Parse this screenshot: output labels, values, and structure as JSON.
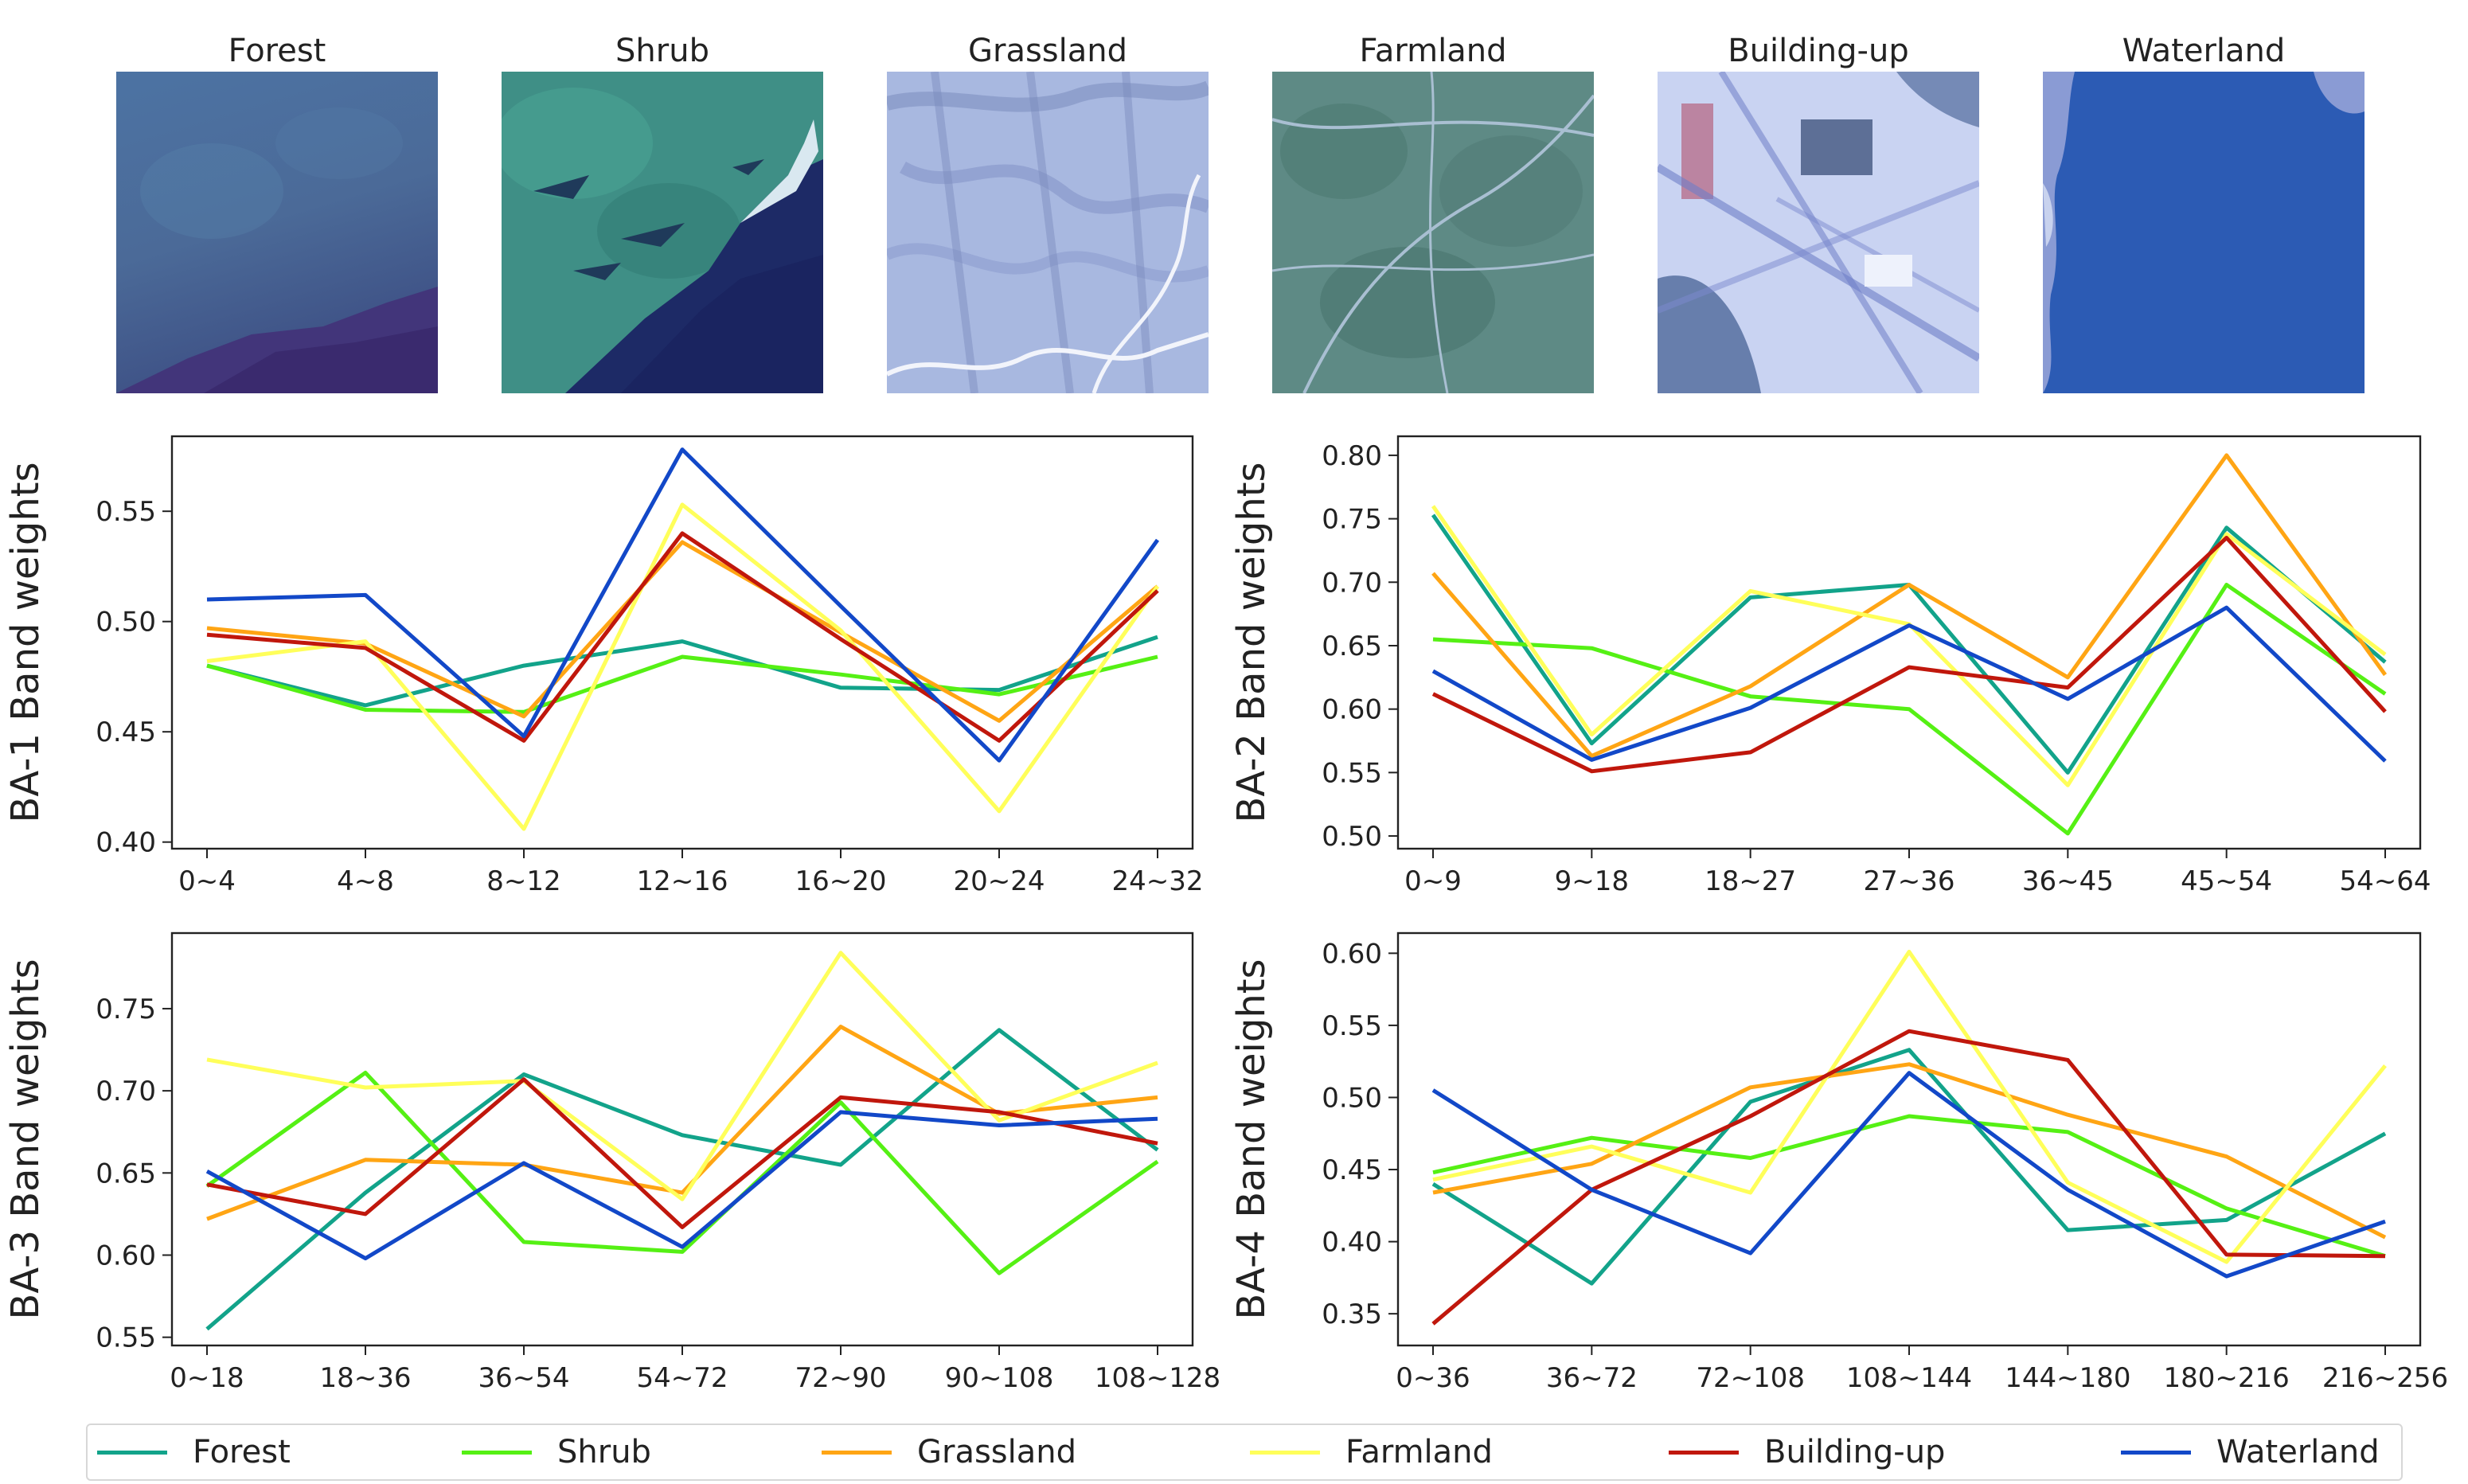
{
  "series_colors": {
    "Forest": "#12a38a",
    "Shrub": "#55f014",
    "Grassland": "#ffa514",
    "Farmland": "#ffff5a",
    "Building-up": "#c0170c",
    "Waterland": "#1248c8"
  },
  "thumbnails": [
    {
      "label": "Forest",
      "icon": "forest-satellite-image"
    },
    {
      "label": "Shrub",
      "icon": "shrub-satellite-image"
    },
    {
      "label": "Grassland",
      "icon": "grassland-satellite-image"
    },
    {
      "label": "Farmland",
      "icon": "farmland-satellite-image"
    },
    {
      "label": "Building-up",
      "icon": "building-up-satellite-image"
    },
    {
      "label": "Waterland",
      "icon": "waterland-satellite-image"
    }
  ],
  "legend": [
    "Forest",
    "Shrub",
    "Grassland",
    "Farmland",
    "Building-up",
    "Waterland"
  ],
  "chart_data": [
    {
      "type": "line",
      "ylabel": "BA-1 Band weights",
      "categories": [
        "0~4",
        "4~8",
        "8~12",
        "12~16",
        "16~20",
        "20~24",
        "24~32"
      ],
      "ylim": [
        0.397,
        0.584
      ],
      "yticks": [
        0.4,
        0.45,
        0.5,
        0.55
      ],
      "grid": false,
      "series": [
        {
          "name": "Forest",
          "values": [
            0.48,
            0.462,
            0.48,
            0.491,
            0.47,
            0.469,
            0.493
          ]
        },
        {
          "name": "Shrub",
          "values": [
            0.48,
            0.46,
            0.459,
            0.484,
            0.476,
            0.467,
            0.484
          ]
        },
        {
          "name": "Grassland",
          "values": [
            0.497,
            0.49,
            0.457,
            0.536,
            0.495,
            0.455,
            0.516
          ]
        },
        {
          "name": "Farmland",
          "values": [
            0.482,
            0.491,
            0.406,
            0.553,
            0.496,
            0.414,
            0.516
          ]
        },
        {
          "name": "Building-up",
          "values": [
            0.494,
            0.488,
            0.446,
            0.54,
            0.492,
            0.446,
            0.514
          ]
        },
        {
          "name": "Waterland",
          "values": [
            0.51,
            0.512,
            0.448,
            0.578,
            0.507,
            0.437,
            0.537
          ]
        }
      ]
    },
    {
      "type": "line",
      "ylabel": "BA-2 Band weights",
      "categories": [
        "0~9",
        "9~18",
        "18~27",
        "27~36",
        "36~45",
        "45~54",
        "54~64"
      ],
      "ylim": [
        0.49,
        0.815
      ],
      "yticks": [
        0.5,
        0.55,
        0.6,
        0.65,
        0.7,
        0.75,
        0.8
      ],
      "grid": false,
      "series": [
        {
          "name": "Forest",
          "values": [
            0.753,
            0.573,
            0.688,
            0.698,
            0.55,
            0.743,
            0.637
          ]
        },
        {
          "name": "Shrub",
          "values": [
            0.655,
            0.648,
            0.61,
            0.6,
            0.502,
            0.698,
            0.612
          ]
        },
        {
          "name": "Grassland",
          "values": [
            0.707,
            0.563,
            0.618,
            0.698,
            0.625,
            0.8,
            0.627
          ]
        },
        {
          "name": "Farmland",
          "values": [
            0.76,
            0.58,
            0.693,
            0.667,
            0.54,
            0.738,
            0.643
          ]
        },
        {
          "name": "Building-up",
          "values": [
            0.612,
            0.551,
            0.566,
            0.633,
            0.617,
            0.735,
            0.598
          ]
        },
        {
          "name": "Waterland",
          "values": [
            0.63,
            0.56,
            0.601,
            0.666,
            0.608,
            0.68,
            0.559
          ]
        }
      ]
    },
    {
      "type": "line",
      "ylabel": "BA-3 Band weights",
      "categories": [
        "0~18",
        "18~36",
        "36~54",
        "54~72",
        "72~90",
        "90~108",
        "108~128"
      ],
      "ylim": [
        0.545,
        0.796
      ],
      "yticks": [
        0.55,
        0.6,
        0.65,
        0.7,
        0.75
      ],
      "grid": false,
      "series": [
        {
          "name": "Forest",
          "values": [
            0.555,
            0.638,
            0.71,
            0.673,
            0.655,
            0.737,
            0.664
          ]
        },
        {
          "name": "Shrub",
          "values": [
            0.642,
            0.711,
            0.608,
            0.602,
            0.693,
            0.589,
            0.657
          ]
        },
        {
          "name": "Grassland",
          "values": [
            0.622,
            0.658,
            0.655,
            0.638,
            0.739,
            0.686,
            0.696
          ]
        },
        {
          "name": "Farmland",
          "values": [
            0.719,
            0.702,
            0.706,
            0.634,
            0.784,
            0.682,
            0.717
          ]
        },
        {
          "name": "Building-up",
          "values": [
            0.643,
            0.625,
            0.707,
            0.617,
            0.696,
            0.687,
            0.668
          ]
        },
        {
          "name": "Waterland",
          "values": [
            0.651,
            0.598,
            0.656,
            0.605,
            0.687,
            0.679,
            0.683
          ]
        }
      ]
    },
    {
      "type": "line",
      "ylabel": "BA-4 Band weights",
      "categories": [
        "0~36",
        "36~72",
        "72~108",
        "108~144",
        "144~180",
        "180~216",
        "216~256"
      ],
      "ylim": [
        0.328,
        0.614
      ],
      "yticks": [
        0.35,
        0.4,
        0.45,
        0.5,
        0.55,
        0.6
      ],
      "grid": false,
      "series": [
        {
          "name": "Forest",
          "values": [
            0.44,
            0.371,
            0.497,
            0.533,
            0.408,
            0.415,
            0.475
          ]
        },
        {
          "name": "Shrub",
          "values": [
            0.448,
            0.472,
            0.458,
            0.487,
            0.476,
            0.423,
            0.39
          ]
        },
        {
          "name": "Grassland",
          "values": [
            0.434,
            0.454,
            0.507,
            0.523,
            0.488,
            0.459,
            0.403
          ]
        },
        {
          "name": "Farmland",
          "values": [
            0.443,
            0.466,
            0.434,
            0.601,
            0.441,
            0.386,
            0.522
          ]
        },
        {
          "name": "Building-up",
          "values": [
            0.343,
            0.436,
            0.487,
            0.546,
            0.526,
            0.391,
            0.39
          ]
        },
        {
          "name": "Waterland",
          "values": [
            0.505,
            0.436,
            0.392,
            0.517,
            0.436,
            0.376,
            0.414
          ]
        }
      ]
    }
  ]
}
